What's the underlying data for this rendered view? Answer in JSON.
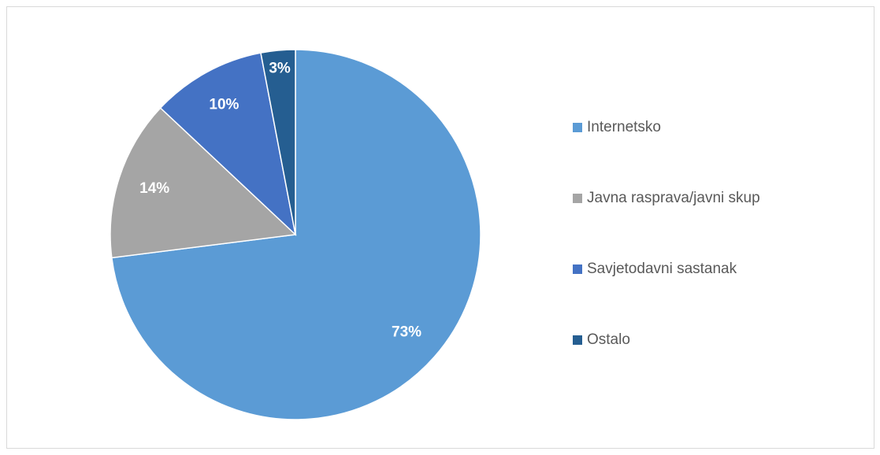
{
  "chart_data": {
    "type": "pie",
    "categories": [
      "Internetsko",
      "Javna rasprava/javni skup",
      "Savjetodavni sastanak",
      "Ostalo"
    ],
    "values": [
      73,
      14,
      10,
      3
    ],
    "value_labels": [
      "73%",
      "14%",
      "10%",
      "3%"
    ],
    "colors": [
      "#5b9bd5",
      "#a5a5a5",
      "#4472c4",
      "#255e91"
    ],
    "legend": "right"
  }
}
